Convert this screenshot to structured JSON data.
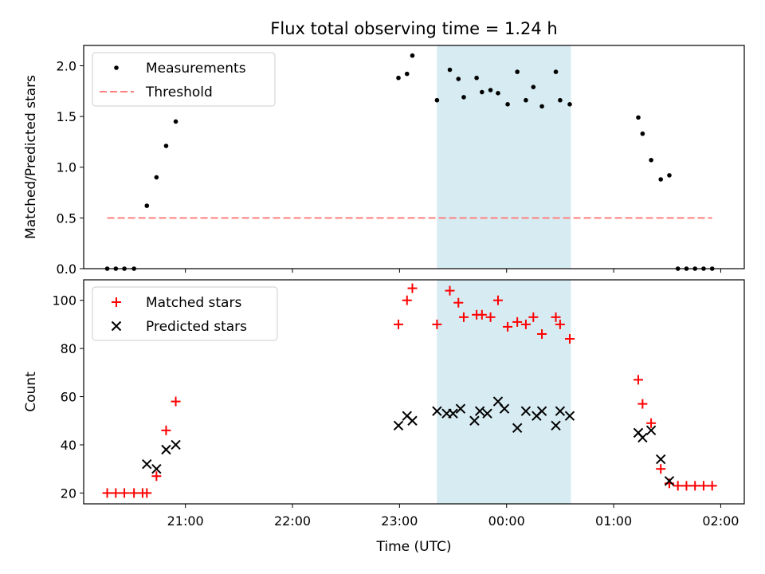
{
  "chart_data": {
    "title": "Flux total observing time = 1.24 h",
    "x_axis": {
      "label": "Time (UTC)",
      "unit": "hours from 00:00 UTC",
      "range": [
        -3.95,
        2.22
      ],
      "tick_values": [
        -3,
        -2,
        -1,
        0,
        1,
        2
      ],
      "tick_labels": [
        "21:00",
        "22:00",
        "23:00",
        "00:00",
        "01:00",
        "02:00"
      ]
    },
    "highlight_span": {
      "x_start": -0.65,
      "x_end": 0.6,
      "color": "#add8e6",
      "opacity": 0.5
    },
    "panels": [
      {
        "type": "scatter",
        "ylabel": "Matched/Predicted stars",
        "ylim": [
          0,
          2.2
        ],
        "yticks": [
          0,
          0.5,
          1,
          1.5,
          2
        ],
        "ytick_labels": [
          "0.0",
          "0.5",
          "1.0",
          "1.5",
          "2.0"
        ],
        "legend": {
          "location": "upper-left"
        },
        "series": [
          {
            "name": "Measurements",
            "marker": "dot",
            "color": "#000000",
            "x": [
              -3.73,
              -3.65,
              -3.57,
              -3.48,
              -3.36,
              -3.27,
              -3.18,
              -3.09,
              -1.01,
              -0.93,
              -0.88,
              -0.65,
              -0.53,
              -0.45,
              -0.4,
              -0.28,
              -0.23,
              -0.15,
              -0.08,
              0.01,
              0.1,
              0.18,
              0.25,
              0.33,
              0.46,
              0.5,
              0.59,
              1.23,
              1.27,
              1.35,
              1.44,
              1.52,
              1.6,
              1.68,
              1.76,
              1.84,
              1.92
            ],
            "y": [
              0,
              0,
              0,
              0,
              0.62,
              0.9,
              1.21,
              1.45,
              1.88,
              1.92,
              2.1,
              1.66,
              1.96,
              1.87,
              1.69,
              1.88,
              1.74,
              1.76,
              1.73,
              1.62,
              1.94,
              1.66,
              1.79,
              1.6,
              1.94,
              1.66,
              1.62,
              1.49,
              1.33,
              1.07,
              0.88,
              0.92,
              0,
              0,
              0,
              0,
              0
            ]
          },
          {
            "name": "Threshold",
            "kind": "line",
            "style": "dashed",
            "color": "#ff7f7f",
            "x": [
              -3.73,
              1.92
            ],
            "y": [
              0.5,
              0.5
            ]
          }
        ]
      },
      {
        "type": "scatter",
        "ylabel": "Count",
        "ylim": [
          15.5,
          108.5
        ],
        "yticks": [
          20,
          40,
          60,
          80,
          100
        ],
        "ytick_labels": [
          "20",
          "40",
          "60",
          "80",
          "100"
        ],
        "legend": {
          "location": "upper-left"
        },
        "series": [
          {
            "name": "Matched stars",
            "marker": "plus",
            "color": "#ff0000",
            "x": [
              -3.73,
              -3.65,
              -3.57,
              -3.48,
              -3.4,
              -3.36,
              -3.27,
              -3.18,
              -3.09,
              -1.01,
              -0.93,
              -0.88,
              -0.65,
              -0.53,
              -0.45,
              -0.4,
              -0.28,
              -0.23,
              -0.15,
              -0.08,
              0.01,
              0.1,
              0.18,
              0.25,
              0.33,
              0.46,
              0.5,
              0.59,
              1.23,
              1.27,
              1.35,
              1.44,
              1.52,
              1.6,
              1.68,
              1.76,
              1.84,
              1.92
            ],
            "y": [
              20,
              20,
              20,
              20,
              20,
              20,
              27,
              46,
              58,
              90,
              100,
              105,
              90,
              104,
              99,
              93,
              94,
              94,
              93,
              100,
              89,
              91,
              90,
              93,
              86,
              93,
              90,
              84,
              67,
              57,
              49,
              30,
              24,
              23,
              23,
              23,
              23,
              23
            ]
          },
          {
            "name": "Predicted stars",
            "marker": "x",
            "color": "#000000",
            "x": [
              -3.36,
              -3.27,
              -3.18,
              -3.09,
              -1.01,
              -0.93,
              -0.88,
              -0.65,
              -0.56,
              -0.5,
              -0.43,
              -0.3,
              -0.25,
              -0.18,
              -0.08,
              -0.02,
              0.1,
              0.18,
              0.28,
              0.33,
              0.46,
              0.5,
              0.59,
              1.23,
              1.27,
              1.35,
              1.44,
              1.52
            ],
            "y": [
              32,
              30,
              38,
              40,
              48,
              52,
              50,
              54,
              53,
              53,
              55,
              50,
              54,
              53,
              58,
              55,
              47,
              54,
              52,
              54,
              48,
              54,
              52,
              45,
              43,
              46,
              34,
              25
            ]
          }
        ]
      }
    ]
  }
}
